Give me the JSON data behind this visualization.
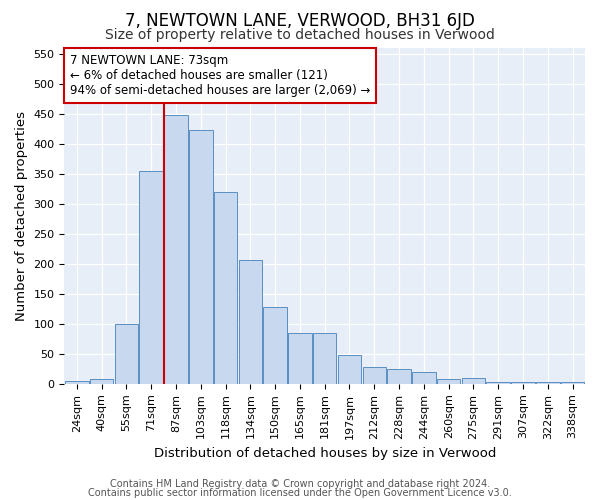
{
  "title": "7, NEWTOWN LANE, VERWOOD, BH31 6JD",
  "subtitle": "Size of property relative to detached houses in Verwood",
  "xlabel": "Distribution of detached houses by size in Verwood",
  "ylabel": "Number of detached properties",
  "categories": [
    "24sqm",
    "40sqm",
    "55sqm",
    "71sqm",
    "87sqm",
    "103sqm",
    "118sqm",
    "134sqm",
    "150sqm",
    "165sqm",
    "181sqm",
    "197sqm",
    "212sqm",
    "228sqm",
    "244sqm",
    "260sqm",
    "275sqm",
    "291sqm",
    "307sqm",
    "322sqm",
    "338sqm"
  ],
  "values": [
    5,
    8,
    100,
    355,
    447,
    422,
    320,
    207,
    128,
    85,
    85,
    48,
    28,
    25,
    20,
    8,
    10,
    3,
    3,
    3,
    3
  ],
  "bar_color": "#c8d8ee",
  "bar_edge_color": "#5a8fc2",
  "vline_x": 3.5,
  "vline_color": "#cc0000",
  "ylim": [
    0,
    560
  ],
  "yticks": [
    0,
    50,
    100,
    150,
    200,
    250,
    300,
    350,
    400,
    450,
    500,
    550
  ],
  "annotation_title": "7 NEWTOWN LANE: 73sqm",
  "annotation_line1": "← 6% of detached houses are smaller (121)",
  "annotation_line2": "94% of semi-detached houses are larger (2,069) →",
  "annotation_box_color": "#ffffff",
  "annotation_box_edge": "#cc0000",
  "footer1": "Contains HM Land Registry data © Crown copyright and database right 2024.",
  "footer2": "Contains public sector information licensed under the Open Government Licence v3.0.",
  "plot_bg_color": "#e8eef8",
  "grid_color": "#ffffff",
  "title_fontsize": 12,
  "subtitle_fontsize": 10,
  "axis_label_fontsize": 9.5,
  "tick_fontsize": 8,
  "annotation_fontsize": 8.5,
  "footer_fontsize": 7
}
